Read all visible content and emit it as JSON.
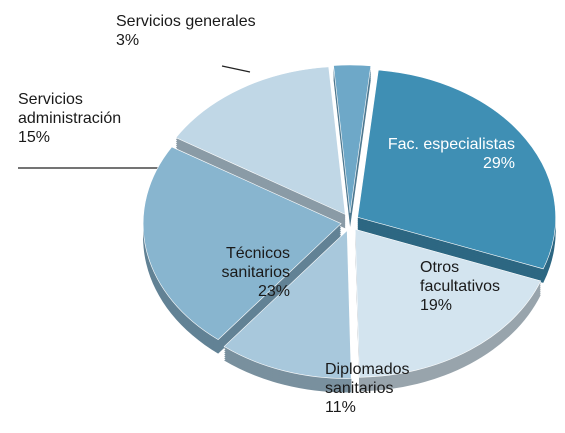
{
  "chart_data": {
    "type": "pie",
    "categories": [
      "Fac. especialistas",
      "Otros facultativos",
      "Diplomados sanitarios",
      "Técnicos sanitarios",
      "Servicios administración",
      "Servicios generales"
    ],
    "values": [
      29,
      19,
      11,
      23,
      15,
      3
    ],
    "value_labels": [
      "29%",
      "19%",
      "11%",
      "23%",
      "15%",
      "3%"
    ],
    "colors": [
      "#3f8fb4",
      "#d3e4ef",
      "#a8c8dc",
      "#88b5cf",
      "#c0d7e6",
      "#6ea8c8"
    ]
  }
}
